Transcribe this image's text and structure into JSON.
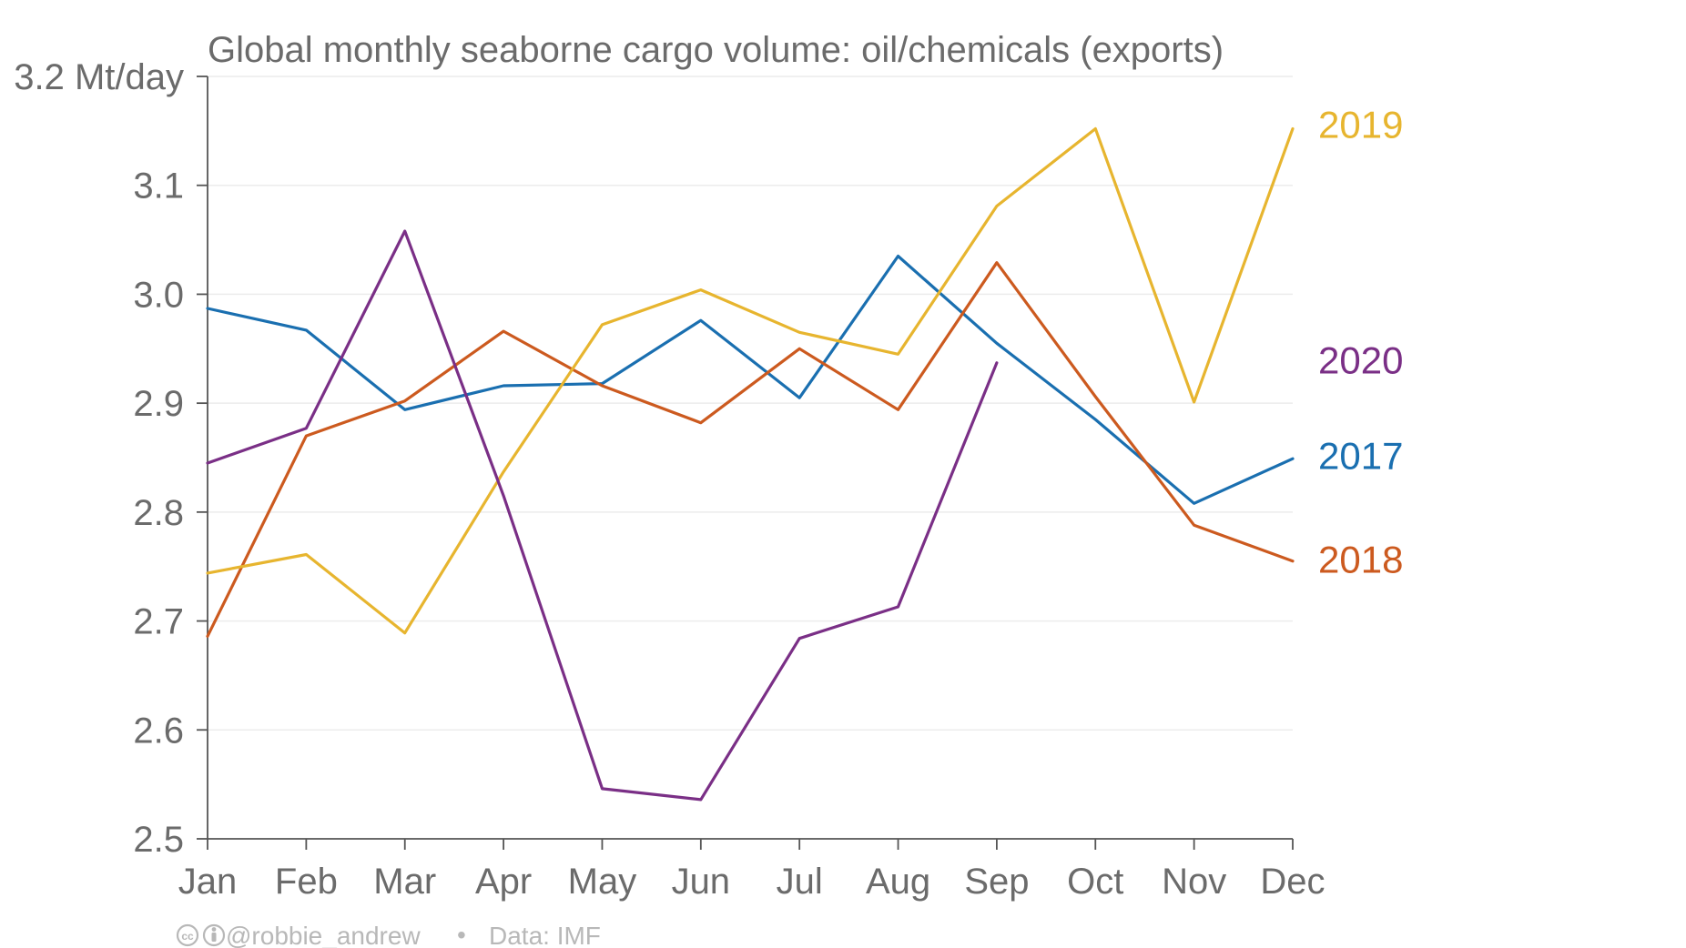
{
  "chart_data": {
    "type": "line",
    "title": "Global monthly seaborne cargo volume: oil/chemicals (exports)",
    "ylabel": "Mt/day",
    "ylim": [
      2.5,
      3.2
    ],
    "y_ticks": [
      "2.5",
      "2.6",
      "2.7",
      "2.8",
      "2.9",
      "3.0",
      "3.1",
      "3.2 Mt/day"
    ],
    "y_tick_values": [
      2.5,
      2.6,
      2.7,
      2.8,
      2.9,
      3.0,
      3.1,
      3.2
    ],
    "categories": [
      "Jan",
      "Feb",
      "Mar",
      "Apr",
      "May",
      "Jun",
      "Jul",
      "Aug",
      "Sep",
      "Oct",
      "Nov",
      "Dec"
    ],
    "grid": true,
    "legend": "inline labels at right end of lines",
    "series": [
      {
        "name": "2017",
        "color": "#1a6fb0",
        "label_value": 2.852,
        "values": [
          2.987,
          2.967,
          2.894,
          2.916,
          2.918,
          2.976,
          2.905,
          3.035,
          2.955,
          2.885,
          2.808,
          2.849
        ]
      },
      {
        "name": "2018",
        "color": "#cc5a1f",
        "label_value": 2.757,
        "values": [
          2.686,
          2.87,
          2.902,
          2.966,
          2.916,
          2.882,
          2.95,
          2.894,
          3.029,
          2.906,
          2.788,
          2.755
        ]
      },
      {
        "name": "2019",
        "color": "#e7b52f",
        "label_value": 3.156,
        "values": [
          2.744,
          2.761,
          2.689,
          2.837,
          2.972,
          3.004,
          2.965,
          2.945,
          3.081,
          3.152,
          2.901,
          3.152
        ]
      },
      {
        "name": "2020",
        "color": "#7a2f86",
        "label_value": 2.94,
        "values": [
          2.845,
          2.877,
          3.058,
          2.815,
          2.546,
          2.536,
          2.684,
          2.713,
          2.937,
          null,
          null,
          null
        ]
      }
    ]
  },
  "credit": {
    "license_icons": "cc-by-icon",
    "author": "@robbie_andrew",
    "separator": "•",
    "source": "Data: IMF"
  },
  "colors": {
    "text": "#6b6b6b",
    "axis": "#555555",
    "grid": "#ececec",
    "credit": "#b8b8b8"
  }
}
